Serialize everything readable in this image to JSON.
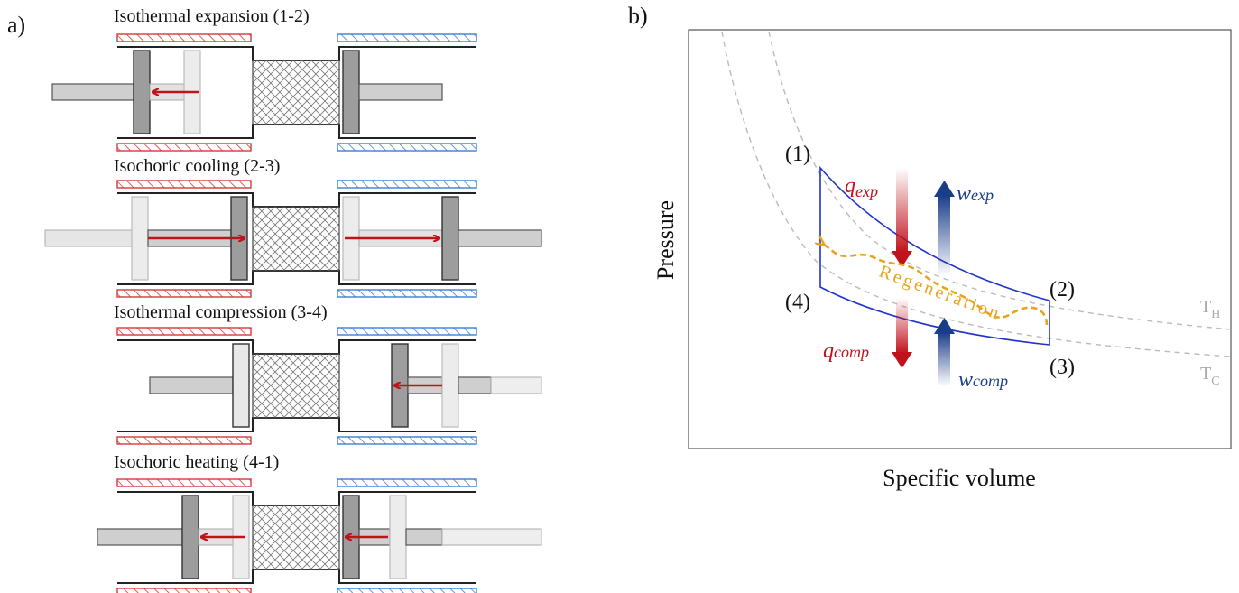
{
  "panel_a": {
    "label": "a)",
    "stages": [
      {
        "title": "Isothermal expansion (1-2)"
      },
      {
        "title": "Isochoric cooling (2-3)"
      },
      {
        "title": "Isothermal compression (3-4)"
      },
      {
        "title": "Isochoric heating (4-1)"
      }
    ]
  },
  "panel_b": {
    "label": "b)",
    "xlabel": "Specific volume",
    "ylabel": "Pressure",
    "states": {
      "s1": "(1)",
      "s2": "(2)",
      "s3": "(3)",
      "s4": "(4)"
    },
    "isotherms": {
      "hot": {
        "main": "T",
        "sub": "H"
      },
      "cold": {
        "main": "T",
        "sub": "C"
      }
    },
    "heat_exp": {
      "main": "q",
      "sub": "exp"
    },
    "work_exp": {
      "main": "w",
      "sub": "exp"
    },
    "heat_comp": {
      "main": "q",
      "sub": "comp"
    },
    "work_comp": {
      "main": "w",
      "sub": "comp"
    },
    "regeneration": "Regeneration"
  },
  "colors": {
    "hot": "#d43a3a",
    "cold": "#3a7fd4",
    "arrow": "#c0121b",
    "cycle": "#2233cc",
    "work": "#1a3d8a",
    "regen": "#e8a41e",
    "isotherm": "#bbbbbb"
  }
}
